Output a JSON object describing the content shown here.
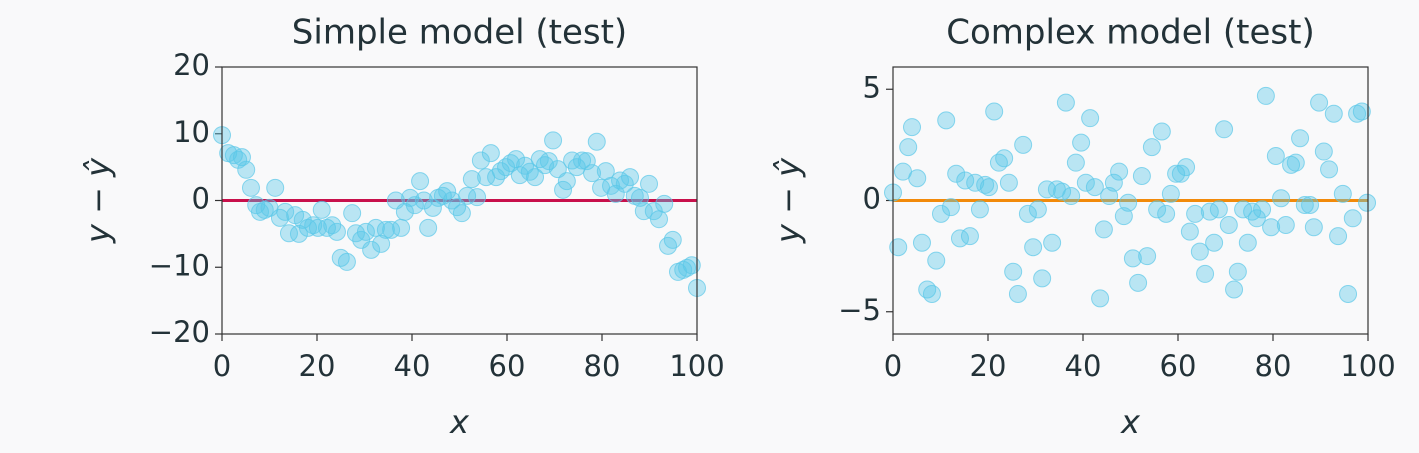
{
  "chart_data": [
    {
      "type": "scatter",
      "title": "Simple model (test)",
      "x_label": "x",
      "y_label": "y − ŷ",
      "xlim": [
        0,
        100
      ],
      "ylim": [
        -20,
        20
      ],
      "xticks": [
        0,
        20,
        40,
        60,
        80,
        100
      ],
      "yticks": [
        {
          "value": -20,
          "label": "−20"
        },
        {
          "value": -10,
          "label": "−10"
        },
        0,
        10,
        20
      ],
      "color": "#5bc8e8",
      "reference_line": {
        "value": 0,
        "color": "#c8104b"
      },
      "x": [
        0,
        1.3,
        2.5,
        3.4,
        4.2,
        5.1,
        6.1,
        7.2,
        8,
        9,
        10,
        11.2,
        12.2,
        13.3,
        14.1,
        15.4,
        16.2,
        17,
        18.1,
        19.2,
        20.2,
        21,
        22.1,
        23.2,
        24.2,
        25,
        26.3,
        27.4,
        28.2,
        29.3,
        30.3,
        31.4,
        32.4,
        33.5,
        34.5,
        35.6,
        36.6,
        37.7,
        38.5,
        39.6,
        40.6,
        41.7,
        42.5,
        43.4,
        44.4,
        45.5,
        46.5,
        47.4,
        48.4,
        49.5,
        50.5,
        51.6,
        52.6,
        53.7,
        54.5,
        55.6,
        56.6,
        57.7,
        58.7,
        59.8,
        60.8,
        61.9,
        62.7,
        63.8,
        64.8,
        65.9,
        66.9,
        68,
        68.8,
        69.7,
        70.7,
        71.8,
        72.6,
        73.7,
        74.7,
        75.8,
        76.8,
        77.9,
        78.9,
        79.8,
        80.8,
        81.9,
        82.9,
        83.8,
        84.8,
        85.9,
        86.9,
        88,
        88.8,
        89.9,
        90.9,
        92,
        93.1,
        93.9,
        94.9,
        96,
        97.1,
        97.9,
        98.9,
        100
      ],
      "values": [
        9.8,
        7.1,
        6.8,
        6.1,
        6.5,
        4.6,
        1.9,
        -0.7,
        -1.7,
        -1.4,
        -1.1,
        1.9,
        -2.6,
        -1.7,
        -4.9,
        -2.2,
        -5,
        -2.9,
        -4.1,
        -3.7,
        -4.1,
        -1.4,
        -4.1,
        -3.7,
        -4.7,
        -8.6,
        -9.2,
        -1.9,
        -4.9,
        -5.9,
        -4.7,
        -7.4,
        -4.1,
        -6.5,
        -4.4,
        -4.4,
        0,
        -4.1,
        -1.7,
        0.4,
        -0.7,
        2.9,
        0,
        -4.1,
        -1.1,
        0.4,
        0.7,
        1.4,
        0,
        -1,
        -1.9,
        0.7,
        3.2,
        0.5,
        6,
        3.5,
        7.1,
        3.5,
        4.4,
        5,
        5.6,
        6.2,
        3.8,
        5.2,
        4.3,
        3.5,
        6.2,
        5.3,
        5.9,
        9,
        4.7,
        1.6,
        2.9,
        6,
        5,
        6,
        5.9,
        4.1,
        8.8,
        1.9,
        4.4,
        2.2,
        1,
        3,
        2.5,
        3.5,
        0.7,
        0.4,
        -1.6,
        2.5,
        -1.6,
        -2.8,
        -0.5,
        -6.8,
        -5.9,
        -10.7,
        -10.4,
        -10.1,
        -9.7,
        -13.1
      ]
    },
    {
      "type": "scatter",
      "title": "Complex model (test)",
      "x_label": "x",
      "y_label": "y − ŷ",
      "xlim": [
        0,
        100
      ],
      "ylim": [
        -6,
        6
      ],
      "xticks": [
        0,
        20,
        40,
        60,
        80,
        100
      ],
      "yticks": [
        {
          "value": -5,
          "label": "−5"
        },
        0,
        5
      ],
      "color": "#5bc8e8",
      "reference_line": {
        "value": 0,
        "color": "#f28a0a"
      },
      "x": [
        0,
        1.1,
        2.1,
        3.2,
        4,
        5.1,
        6.1,
        7.2,
        8.2,
        9.1,
        10.1,
        11.2,
        12.2,
        13.3,
        14.1,
        15.2,
        16.2,
        17.3,
        18.3,
        19.4,
        20.2,
        21.3,
        22.3,
        23.4,
        24.4,
        25.3,
        26.3,
        27.4,
        28.4,
        29.5,
        30.5,
        31.4,
        32.4,
        33.5,
        34.5,
        35.6,
        36.4,
        37.5,
        38.5,
        39.6,
        40.6,
        41.5,
        42.5,
        43.6,
        44.4,
        45.5,
        46.5,
        47.6,
        48.6,
        49.5,
        50.5,
        51.6,
        52.4,
        53.5,
        54.5,
        55.6,
        56.6,
        57.5,
        58.5,
        59.6,
        60.6,
        61.7,
        62.5,
        63.6,
        64.6,
        65.7,
        66.7,
        67.6,
        68.6,
        69.7,
        70.7,
        71.8,
        72.6,
        73.7,
        74.7,
        75.6,
        76.6,
        77.7,
        78.5,
        79.6,
        80.6,
        81.7,
        82.7,
        83.8,
        84.8,
        85.7,
        86.7,
        87.8,
        88.6,
        89.7,
        90.7,
        91.8,
        92.8,
        93.7,
        94.7,
        95.8,
        96.8,
        97.7,
        98.7,
        99.8
      ],
      "values": [
        0.36,
        -2.1,
        1.3,
        2.4,
        3.3,
        1,
        -1.9,
        -4,
        -4.2,
        -2.7,
        -0.6,
        3.6,
        -0.3,
        1.2,
        -1.7,
        0.9,
        -1.6,
        0.8,
        -0.4,
        0.7,
        0.6,
        4,
        1.7,
        1.9,
        0.8,
        -3.2,
        -4.2,
        2.5,
        -0.6,
        -2.1,
        -0.4,
        -3.5,
        0.5,
        -1.9,
        0.5,
        0.4,
        4.4,
        0.2,
        1.7,
        2.6,
        0.8,
        3.7,
        0.6,
        -4.4,
        -1.3,
        0.2,
        0.8,
        1.3,
        -0.7,
        -0.1,
        -2.6,
        -3.7,
        1.1,
        -2.5,
        2.4,
        -0.4,
        3.1,
        -0.6,
        0.3,
        1.2,
        1.2,
        1.5,
        -1.4,
        -0.6,
        -2.3,
        -3.3,
        -0.5,
        -1.9,
        -0.4,
        3.2,
        -1.1,
        -4,
        -3.2,
        -0.4,
        -1.9,
        -0.5,
        -0.8,
        -0.4,
        4.7,
        -1.2,
        2,
        0.1,
        -1.1,
        1.6,
        1.7,
        2.8,
        -0.2,
        -0.2,
        -1.2,
        4.4,
        2.2,
        1.4,
        3.9,
        -1.6,
        0.3,
        -4.2,
        -0.8,
        3.9,
        4,
        -0.1
      ]
    }
  ]
}
